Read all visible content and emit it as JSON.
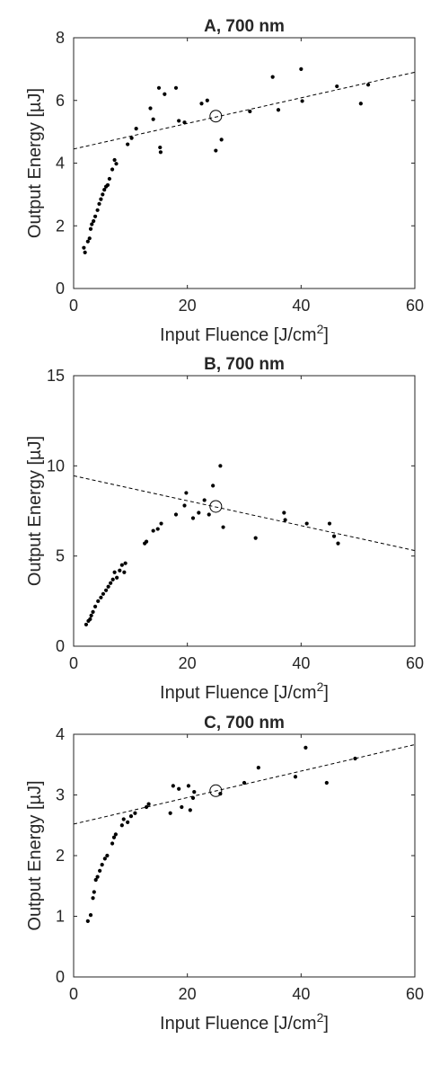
{
  "chart_data": [
    {
      "type": "scatter",
      "title": "A, 700 nm",
      "xlabel": "Input Fluence [J/cm",
      "xlabel_sup": "2",
      "xlabel_end": "]",
      "ylabel": "Output Energy [µJ]",
      "xlim": [
        0,
        60
      ],
      "ylim": [
        0,
        8
      ],
      "xticks": [
        0,
        20,
        40,
        60
      ],
      "yticks": [
        0,
        2,
        4,
        6,
        8
      ],
      "grid": false,
      "series": [
        {
          "marker": "dot",
          "x": [
            1.8,
            2.0,
            2.5,
            2.8,
            3.0,
            3.2,
            3.5,
            3.8,
            4.2,
            4.5,
            4.8,
            5.1,
            5.4,
            5.7,
            6.0,
            6.3,
            6.8,
            7.2,
            7.5,
            9.5,
            10.2,
            11.0,
            13.5,
            14.0,
            15.0,
            15.2,
            15.3,
            16.0,
            18.0,
            18.5,
            19.5,
            22.5,
            23.5,
            25.0,
            26.0,
            31.0,
            35.0,
            36.0,
            40.0,
            40.2,
            46.3,
            50.5,
            51.8
          ],
          "y": [
            1.3,
            1.15,
            1.5,
            1.6,
            1.9,
            2.05,
            2.15,
            2.3,
            2.5,
            2.7,
            2.85,
            3.0,
            3.15,
            3.25,
            3.3,
            3.5,
            3.8,
            4.1,
            3.98,
            4.6,
            4.8,
            5.1,
            5.75,
            5.4,
            6.4,
            4.5,
            4.35,
            6.2,
            6.4,
            5.35,
            5.3,
            5.9,
            6.0,
            4.4,
            4.75,
            5.65,
            6.75,
            5.7,
            7.0,
            5.98,
            6.45,
            5.9,
            6.5
          ]
        }
      ],
      "fit_line": {
        "style": "dashed",
        "x": [
          0,
          60
        ],
        "y": [
          4.45,
          6.9
        ]
      },
      "highlight": {
        "marker": "open-circle",
        "x": 25,
        "y": 5.5
      }
    },
    {
      "type": "scatter",
      "title": "B, 700 nm",
      "xlabel": "Input Fluence [J/cm",
      "xlabel_sup": "2",
      "xlabel_end": "]",
      "ylabel": "Output Energy [µJ]",
      "xlim": [
        0,
        60
      ],
      "ylim": [
        0,
        15
      ],
      "xticks": [
        0,
        20,
        40,
        60
      ],
      "yticks": [
        0,
        5,
        10,
        15
      ],
      "grid": false,
      "series": [
        {
          "marker": "dot",
          "x": [
            2.2,
            2.6,
            2.9,
            3.1,
            3.4,
            3.8,
            4.3,
            4.8,
            5.2,
            5.7,
            6.1,
            6.5,
            6.9,
            7.2,
            7.6,
            8.1,
            8.5,
            8.9,
            9.1,
            12.5,
            12.8,
            14.0,
            14.8,
            15.4,
            18.0,
            19.5,
            19.8,
            21.0,
            22.0,
            23.0,
            23.8,
            24.5,
            25.8,
            26.3,
            32.0,
            37.0,
            37.2,
            41.0,
            45.0,
            45.8,
            46.5
          ],
          "y": [
            1.2,
            1.4,
            1.5,
            1.7,
            1.9,
            2.2,
            2.5,
            2.7,
            2.9,
            3.1,
            3.3,
            3.5,
            3.7,
            4.1,
            3.8,
            4.2,
            4.5,
            4.1,
            4.6,
            5.7,
            5.8,
            6.4,
            6.5,
            6.8,
            7.3,
            7.8,
            8.5,
            7.1,
            7.4,
            8.1,
            7.3,
            8.9,
            10.0,
            6.6,
            6.0,
            7.4,
            7.0,
            6.8,
            6.8,
            6.1,
            5.7
          ]
        }
      ],
      "fit_line": {
        "style": "dashed",
        "x": [
          0,
          60
        ],
        "y": [
          9.45,
          5.3
        ]
      },
      "highlight": {
        "marker": "open-circle",
        "x": 25,
        "y": 7.75
      }
    },
    {
      "type": "scatter",
      "title": "C, 700 nm",
      "xlabel": "Input Fluence [J/cm",
      "xlabel_sup": "2",
      "xlabel_end": "]",
      "ylabel": "Output Energy [µJ]",
      "xlim": [
        0,
        60
      ],
      "ylim": [
        0,
        4
      ],
      "xticks": [
        0,
        20,
        40,
        60
      ],
      "yticks": [
        0,
        1,
        2,
        3,
        4
      ],
      "grid": false,
      "series": [
        {
          "marker": "dot",
          "x": [
            2.5,
            3.0,
            3.4,
            3.6,
            3.9,
            4.2,
            4.6,
            5.0,
            5.5,
            5.9,
            6.8,
            7.1,
            7.4,
            8.5,
            8.8,
            9.5,
            10.1,
            10.8,
            12.8,
            13.2,
            17.0,
            17.5,
            18.5,
            19.0,
            20.2,
            20.5,
            21.0,
            21.2,
            25.8,
            30.0,
            32.5,
            39.0,
            40.8,
            44.5,
            49.5
          ],
          "y": [
            0.92,
            1.02,
            1.3,
            1.4,
            1.6,
            1.65,
            1.75,
            1.85,
            1.95,
            2.0,
            2.2,
            2.3,
            2.35,
            2.5,
            2.6,
            2.55,
            2.65,
            2.7,
            2.8,
            2.85,
            2.7,
            3.15,
            3.1,
            2.8,
            3.15,
            2.75,
            2.95,
            3.05,
            3.02,
            3.2,
            3.45,
            3.3,
            3.78,
            3.2,
            3.6
          ]
        }
      ],
      "fit_line": {
        "style": "dashed",
        "x": [
          0,
          60
        ],
        "y": [
          2.52,
          3.83
        ]
      },
      "highlight": {
        "marker": "open-circle",
        "x": 25,
        "y": 3.07
      }
    }
  ]
}
